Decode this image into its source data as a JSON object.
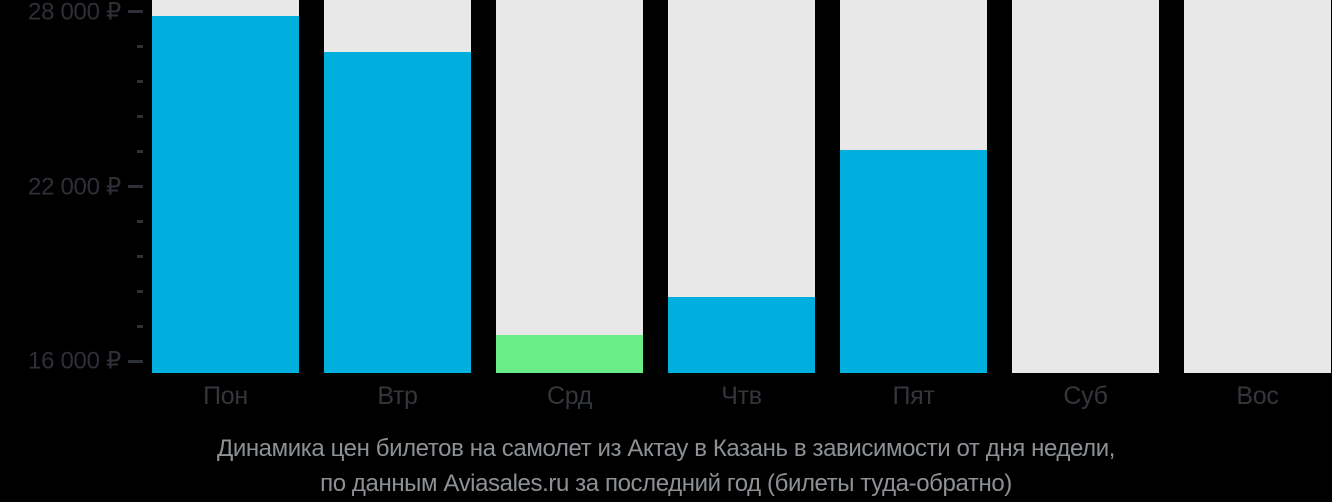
{
  "chart_data": {
    "type": "bar",
    "title": "Динамика цен билетов на самолет из Актау в Казань в зависимости от дня недели,",
    "subtitle": "по данным Aviasales.ru за последний год (билеты туда-обратно)",
    "categories": [
      "Пон",
      "Втр",
      "Срд",
      "Чтв",
      "Пят",
      "Суб",
      "Вос"
    ],
    "values": [
      27850,
      26600,
      16900,
      18200,
      23250,
      null,
      null
    ],
    "highlight_index": 2,
    "currency": "₽",
    "ylim": [
      15600,
      28400
    ],
    "y_axis": {
      "major_ticks": [
        {
          "value": 28000,
          "label": "28 000 ₽"
        },
        {
          "value": 22000,
          "label": "22 000 ₽"
        },
        {
          "value": 16000,
          "label": "16 000 ₽"
        }
      ],
      "minor_tick_values": [
        17200,
        18400,
        19600,
        20800,
        23200,
        24400,
        25600,
        26800
      ]
    },
    "legend": "none",
    "grid": "off"
  },
  "colors": {
    "background": "#000000",
    "bar": "#00afdd",
    "highlight_bar": "#69ee87",
    "column_bg": "#e8e8e8",
    "axis_text": "#2d3036",
    "x_label_text": "#33363b",
    "footer_text": "#8d9195"
  }
}
